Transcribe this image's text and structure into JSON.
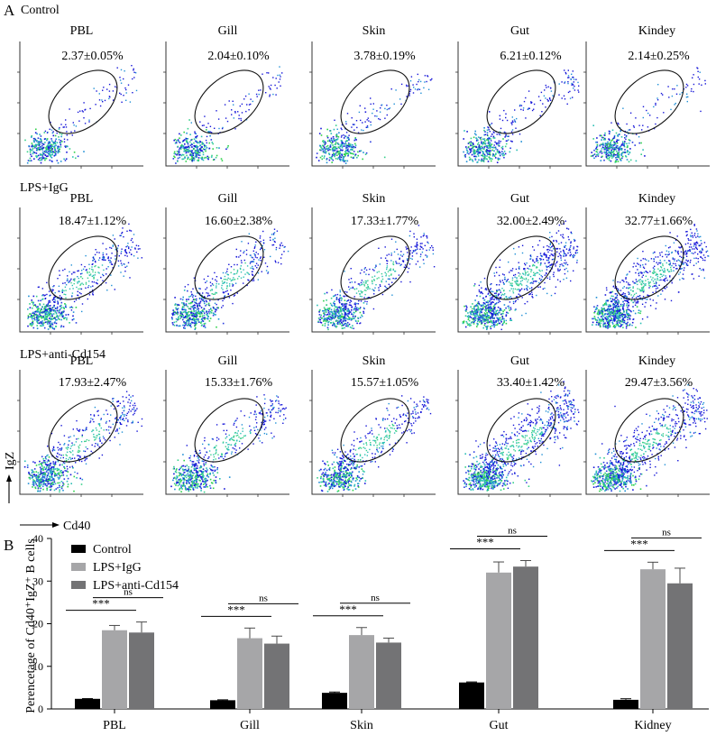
{
  "panel_a": {
    "letter": "A",
    "rows": [
      {
        "label": "Control",
        "cells": [
          {
            "tissue": "PBL",
            "pct": "2.37±0.05%"
          },
          {
            "tissue": "Gill",
            "pct": "2.04±0.10%"
          },
          {
            "tissue": "Skin",
            "pct": "3.78±0.19%"
          },
          {
            "tissue": "Gut",
            "pct": "6.21±0.12%"
          },
          {
            "tissue": "Kindey",
            "pct": "2.14±0.25%"
          }
        ]
      },
      {
        "label": "LPS+IgG",
        "cells": [
          {
            "tissue": "PBL",
            "pct": "18.47±1.12%"
          },
          {
            "tissue": "Gill",
            "pct": "16.60±2.38%"
          },
          {
            "tissue": "Skin",
            "pct": "17.33±1.77%"
          },
          {
            "tissue": "Gut",
            "pct": "32.00±2.49%"
          },
          {
            "tissue": "Kindey",
            "pct": "32.77±1.66%"
          }
        ]
      },
      {
        "label": "LPS+anti-Cd154",
        "cells": [
          {
            "tissue": "PBL",
            "pct": "17.93±2.47%"
          },
          {
            "tissue": "Gill",
            "pct": "15.33±1.76%"
          },
          {
            "tissue": "Skin",
            "pct": "15.57±1.05%"
          },
          {
            "tissue": "Gut",
            "pct": "33.40±1.42%"
          },
          {
            "tissue": "Kindey",
            "pct": "29.47±3.56%"
          }
        ]
      }
    ],
    "y_axis_label": "IgZ",
    "x_axis_label": "Cd40"
  },
  "chart_data": {
    "type": "bar",
    "panel_letter": "B",
    "categories": [
      "PBL",
      "Gill",
      "Skin",
      "Gut",
      "Kidney"
    ],
    "ylabel": "Perencetage of Cd40⁺IgZ⁺ B cells",
    "xlabel": "",
    "ylim": [
      0,
      40
    ],
    "yticks": [
      0,
      10,
      20,
      30,
      40
    ],
    "legend_position": "top-left",
    "series": [
      {
        "name": "Control",
        "color": "#000000",
        "values": [
          2.37,
          2.04,
          3.78,
          6.21,
          2.14
        ],
        "errors": [
          0.05,
          0.1,
          0.19,
          0.12,
          0.25
        ]
      },
      {
        "name": "LPS+IgG",
        "color": "#a6a6a8",
        "values": [
          18.47,
          16.6,
          17.33,
          32.0,
          32.77
        ],
        "errors": [
          1.12,
          2.38,
          1.77,
          2.49,
          1.66
        ]
      },
      {
        "name": "LPS+anti-Cd154",
        "color": "#737375",
        "values": [
          17.93,
          15.33,
          15.57,
          33.4,
          29.47
        ],
        "errors": [
          2.47,
          1.76,
          1.05,
          1.42,
          3.56
        ]
      }
    ],
    "significance": [
      {
        "category": "PBL",
        "pair": [
          "Control",
          "LPS+IgG"
        ],
        "label": "***"
      },
      {
        "category": "PBL",
        "pair": [
          "LPS+IgG",
          "LPS+anti-Cd154"
        ],
        "label": "ns"
      },
      {
        "category": "Gill",
        "pair": [
          "Control",
          "LPS+IgG"
        ],
        "label": "***"
      },
      {
        "category": "Gill",
        "pair": [
          "LPS+IgG",
          "LPS+anti-Cd154"
        ],
        "label": "ns"
      },
      {
        "category": "Skin",
        "pair": [
          "Control",
          "LPS+IgG"
        ],
        "label": "***"
      },
      {
        "category": "Skin",
        "pair": [
          "LPS+IgG",
          "LPS+anti-Cd154"
        ],
        "label": "ns"
      },
      {
        "category": "Gut",
        "pair": [
          "Control",
          "LPS+IgG"
        ],
        "label": "***"
      },
      {
        "category": "Gut",
        "pair": [
          "LPS+IgG",
          "LPS+anti-Cd154"
        ],
        "label": "ns"
      },
      {
        "category": "Kidney",
        "pair": [
          "Control",
          "LPS+IgG"
        ],
        "label": "***"
      },
      {
        "category": "Kidney",
        "pair": [
          "LPS+IgG",
          "LPS+anti-Cd154"
        ],
        "label": "ns"
      }
    ]
  }
}
